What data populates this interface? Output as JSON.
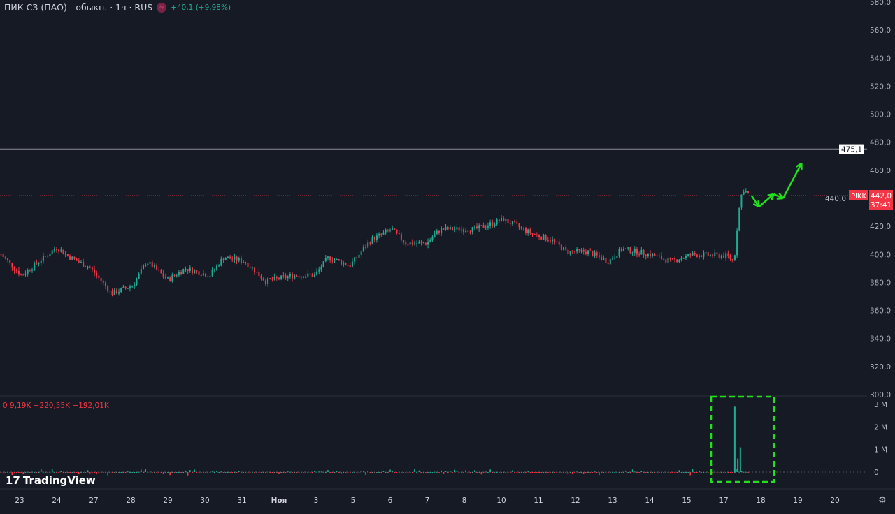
{
  "header": {
    "title": "ПИК СЗ (ПАО) - обыкн. · 1ч · RUS",
    "badge_icon": "≋",
    "change": "+40,1 (+9,98%)"
  },
  "volume_legend": "0  9,19K  −220,55K  −192,01K",
  "logo": "TradingView",
  "colors": {
    "up": "#22ab94",
    "down": "#f23645",
    "bg": "#161a25",
    "annot": "#22e01c"
  },
  "chart_data": {
    "type": "candlestick",
    "title": "ПИК СЗ (ПАО) - обыкн. · 1ч · RUS",
    "y_ticks": [
      "300,0",
      "320,0",
      "340,0",
      "360,0",
      "380,0",
      "400,0",
      "420,0",
      "440,0",
      "460,0",
      "480,0",
      "500,0",
      "520,0",
      "540,0",
      "560,0",
      "580,0"
    ],
    "ylim": [
      300,
      580
    ],
    "x_ticks": [
      "23",
      "24",
      "27",
      "28",
      "29",
      "30",
      "31",
      "Ноя",
      "3",
      "5",
      "6",
      "7",
      "8",
      "10",
      "11",
      "12",
      "13",
      "14",
      "15",
      "17",
      "18",
      "19",
      "20"
    ],
    "price_path": [
      [
        -0.5,
        400
      ],
      [
        0.05,
        385
      ],
      [
        1,
        405
      ],
      [
        1.36,
        398
      ],
      [
        1.92,
        390
      ],
      [
        2.49,
        372
      ],
      [
        3.06,
        378
      ],
      [
        3.43,
        395
      ],
      [
        4,
        382
      ],
      [
        4.47,
        390
      ],
      [
        5.13,
        385
      ],
      [
        5.51,
        398
      ],
      [
        6.08,
        395
      ],
      [
        6.64,
        381
      ],
      [
        7.4,
        385
      ],
      [
        7.96,
        385
      ],
      [
        8.34,
        398
      ],
      [
        8.91,
        392
      ],
      [
        9.47,
        410
      ],
      [
        10.04,
        418
      ],
      [
        10.42,
        408
      ],
      [
        10.98,
        408
      ],
      [
        11.36,
        418
      ],
      [
        12.3,
        418
      ],
      [
        13.06,
        425
      ],
      [
        13.81,
        415
      ],
      [
        14.38,
        410
      ],
      [
        14.75,
        402
      ],
      [
        15.32,
        402
      ],
      [
        15.89,
        395
      ],
      [
        16.26,
        404
      ],
      [
        17.02,
        400
      ],
      [
        17.58,
        395
      ],
      [
        18.15,
        400
      ],
      [
        19.09,
        399
      ],
      [
        19.28,
        395
      ],
      [
        19.4,
        430
      ],
      [
        19.51,
        447
      ],
      [
        19.7,
        442
      ]
    ],
    "volume_ticks": [
      "0",
      "1 M",
      "2 M",
      "3 M"
    ],
    "volume_spikes_millions": [
      [
        19.3,
        2.9
      ],
      [
        19.45,
        1.1
      ],
      [
        19.38,
        0.6
      ]
    ],
    "last_price": {
      "symbol": "PIKK",
      "value": "442,0",
      "countdown": "37:41"
    },
    "level_line": {
      "value": 475.1,
      "label": "475,1"
    },
    "forecast_arrows": [
      [
        19.75,
        442
      ],
      [
        19.95,
        434
      ],
      [
        20.35,
        443
      ],
      [
        20.6,
        440
      ],
      [
        21.1,
        465
      ]
    ]
  }
}
